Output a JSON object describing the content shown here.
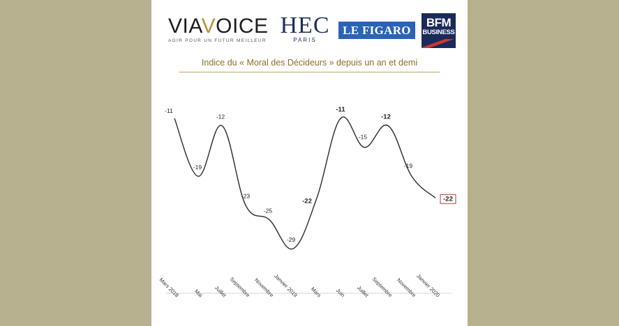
{
  "logos": {
    "viavoice": {
      "name_part1": "VIA",
      "name_part2": "V",
      "name_part3": "OICE",
      "tagline": "AGIR POUR UN FUTUR MEILLEUR"
    },
    "hec": {
      "name": "HEC",
      "sub": "PARIS"
    },
    "figaro": {
      "name": "LE FIGARO"
    },
    "bfm": {
      "line1": "BFM",
      "line2": "BUSINESS"
    }
  },
  "colors": {
    "background": "#b7b190",
    "panel": "#ffffff",
    "title": "#8a6f2c",
    "line": "#2b2b2b",
    "highlight_box": "#c0392b"
  },
  "chart_data": {
    "type": "line",
    "title": "Indice du « Moral des Décideurs » depuis un an et demi",
    "categories": [
      "Mars 2018",
      "Mai",
      "Juillet",
      "Septembre",
      "Novembre",
      "Janvier 2019",
      "Mars",
      "Juin",
      "Juillet",
      "Septembre",
      "Novembre",
      "Janvier 2020"
    ],
    "values": [
      -11,
      -19,
      -12,
      -23,
      -25,
      -29,
      -22,
      -11,
      -15,
      -12,
      -19,
      -22
    ],
    "value_labels": [
      "-11",
      "-19",
      "-12",
      "-23",
      "-25",
      "-29",
      "-22",
      "-11",
      "-15",
      "-12",
      "-19",
      "-22"
    ],
    "bold_labels": [
      false,
      false,
      false,
      false,
      false,
      false,
      true,
      true,
      false,
      true,
      false,
      true
    ],
    "highlighted_index": 11,
    "smooth": true,
    "grid": false,
    "xlabel": "",
    "ylabel": ""
  }
}
